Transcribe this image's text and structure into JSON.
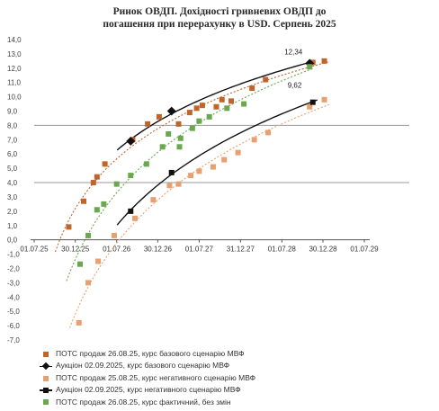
{
  "chart_data": {
    "type": "scatter",
    "title": "Ринок ОВДП. Дохідності гривневих ОВДП до погашення при перерахунку в USD. Серпень 2025",
    "title_lines": [
      "Ринок ОВДП. Дохідності гривневих ОВДП до",
      "погашення при перерахунку в USD. Серпень 2025"
    ],
    "xlabel": "",
    "ylabel": "",
    "x_ticks": [
      "01.07.25",
      "30.12.25",
      "01.07.26",
      "30.12.26",
      "01.07.27",
      "31.12.27",
      "01.07.28",
      "30.12.28",
      "01.07.29"
    ],
    "y_ticks": [
      "14,0",
      "13,0",
      "12,0",
      "11,0",
      "10,0",
      "9,0",
      "8,0",
      "7,0",
      "6,0",
      "5,0",
      "4,0",
      "3,0",
      "2,0",
      "1,0",
      "0,0",
      "-1,0",
      "-2,0",
      "-3,0",
      "-4,0",
      "-5,0",
      "-6,0",
      "-7,0"
    ],
    "ylim": [
      -7,
      14
    ],
    "grid": "horizontal",
    "legend_position": "bottom",
    "annotations": [
      {
        "text": "12,34",
        "x": "2028-11-01",
        "y": 12.34
      },
      {
        "text": "9,62",
        "x": "2028-11-15",
        "y": 9.62
      }
    ],
    "series": [
      {
        "name": "ПОТС продаж 26.08.25, курс базового сценарію МВФ",
        "color": "#c0652a",
        "marker": "square",
        "points": [
          {
            "x": "2025-12-01",
            "y": 0.9
          },
          {
            "x": "2026-02-05",
            "y": 2.7
          },
          {
            "x": "2026-03-20",
            "y": 4.0
          },
          {
            "x": "2026-04-05",
            "y": 4.4
          },
          {
            "x": "2026-05-10",
            "y": 5.3
          },
          {
            "x": "2026-09-10",
            "y": 7.0
          },
          {
            "x": "2026-11-15",
            "y": 8.1
          },
          {
            "x": "2027-01-05",
            "y": 8.6
          },
          {
            "x": "2027-04-01",
            "y": 8.1
          },
          {
            "x": "2027-05-20",
            "y": 8.9
          },
          {
            "x": "2027-06-20",
            "y": 9.2
          },
          {
            "x": "2027-07-15",
            "y": 9.4
          },
          {
            "x": "2027-09-15",
            "y": 9.3
          },
          {
            "x": "2027-10-10",
            "y": 9.8
          },
          {
            "x": "2027-11-20",
            "y": 9.7
          },
          {
            "x": "2028-02-20",
            "y": 10.6
          },
          {
            "x": "2028-04-20",
            "y": 11.2
          },
          {
            "x": "2028-11-15",
            "y": 12.4
          },
          {
            "x": "2029-01-05",
            "y": 12.5
          }
        ]
      },
      {
        "name": "Аукціон 02.09.2025, курс базового сценарію МВФ",
        "color": "#111111",
        "marker": "diamond-line",
        "points": [
          {
            "x": "2026-09-01",
            "y": 6.9
          },
          {
            "x": "2027-03-01",
            "y": 9.0
          },
          {
            "x": "2028-11-01",
            "y": 12.34
          }
        ]
      },
      {
        "name": "ПОТС продаж 25.08.25, курс негативного сценарію МВФ",
        "color": "#e8a070",
        "marker": "square",
        "points": [
          {
            "x": "2026-01-15",
            "y": -5.8
          },
          {
            "x": "2026-02-25",
            "y": -3.0
          },
          {
            "x": "2026-04-10",
            "y": -1.5
          },
          {
            "x": "2026-06-20",
            "y": 0.3
          },
          {
            "x": "2026-09-20",
            "y": 1.5
          },
          {
            "x": "2026-12-10",
            "y": 2.8
          },
          {
            "x": "2027-02-20",
            "y": 3.8
          },
          {
            "x": "2027-04-01",
            "y": 3.9
          },
          {
            "x": "2027-05-25",
            "y": 4.5
          },
          {
            "x": "2027-07-01",
            "y": 4.8
          },
          {
            "x": "2027-09-01",
            "y": 5.1
          },
          {
            "x": "2027-10-20",
            "y": 5.6
          },
          {
            "x": "2027-12-20",
            "y": 6.1
          },
          {
            "x": "2028-03-01",
            "y": 7.0
          },
          {
            "x": "2028-05-01",
            "y": 7.5
          },
          {
            "x": "2028-11-01",
            "y": 9.3
          },
          {
            "x": "2029-01-05",
            "y": 9.8
          }
        ]
      },
      {
        "name": "Аукціон 02.09.2025, курс негативного сценарію МВФ",
        "color": "#111111",
        "marker": "square-line",
        "points": [
          {
            "x": "2026-09-01",
            "y": 2.0
          },
          {
            "x": "2027-03-01",
            "y": 4.7
          },
          {
            "x": "2028-11-15",
            "y": 9.62
          }
        ]
      },
      {
        "name": "ПОТС продаж 26.08.25, курс фактичний, без змін",
        "color": "#6aa84f",
        "marker": "square",
        "points": [
          {
            "x": "2026-01-20",
            "y": -1.7
          },
          {
            "x": "2026-02-25",
            "y": 0.3
          },
          {
            "x": "2026-04-05",
            "y": 2.1
          },
          {
            "x": "2026-05-05",
            "y": 2.5
          },
          {
            "x": "2026-07-01",
            "y": 3.9
          },
          {
            "x": "2026-09-01",
            "y": 4.5
          },
          {
            "x": "2026-11-10",
            "y": 5.3
          },
          {
            "x": "2027-01-20",
            "y": 6.5
          },
          {
            "x": "2027-02-15",
            "y": 7.4
          },
          {
            "x": "2027-04-05",
            "y": 6.5
          },
          {
            "x": "2027-04-10",
            "y": 7.1
          },
          {
            "x": "2027-06-01",
            "y": 7.8
          },
          {
            "x": "2027-07-01",
            "y": 8.3
          },
          {
            "x": "2027-08-15",
            "y": 8.6
          },
          {
            "x": "2027-11-01",
            "y": 9.2
          },
          {
            "x": "2028-01-15",
            "y": 9.5
          },
          {
            "x": "2028-11-01",
            "y": 12.1
          }
        ]
      }
    ],
    "trendlines": [
      {
        "series": "ПОТС продаж 26.08.25, курс базового сценарію МВФ",
        "style": "dotted",
        "color": "#c0652a"
      },
      {
        "series": "Аукціон 02.09.2025, курс базового сценарію МВФ",
        "style": "solid",
        "color": "#111111"
      },
      {
        "series": "ПОТС продаж 25.08.25, курс негативного сценарію МВФ",
        "style": "dotted",
        "color": "#e8a070"
      },
      {
        "series": "Аукціон 02.09.2025, курс негативного сценарію МВФ",
        "style": "solid",
        "color": "#111111"
      },
      {
        "series": "ПОТС продаж 26.08.25, курс фактичний, без змін",
        "style": "dotted",
        "color": "#6aa84f"
      }
    ]
  }
}
